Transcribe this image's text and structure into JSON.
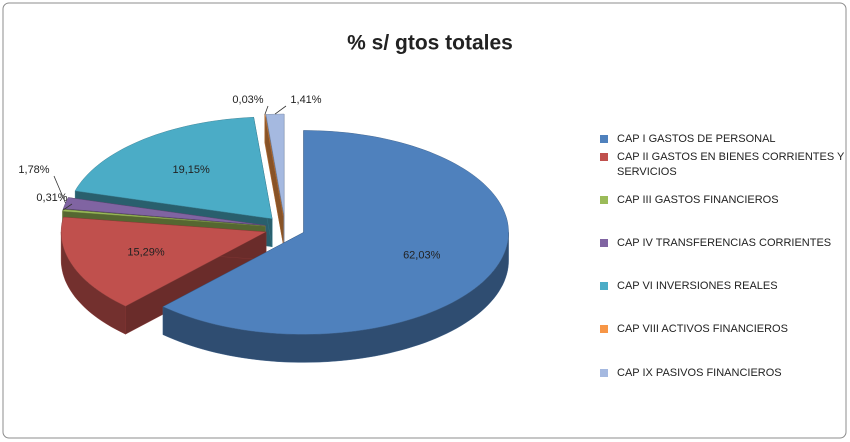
{
  "chart_data": {
    "type": "pie3d",
    "title": "% s/ gtos totales",
    "categories": [
      "CAP I GASTOS DE PERSONAL",
      "CAP II GASTOS EN BIENES CORRIENTES Y SERVICIOS",
      "CAP III GASTOS FINANCIEROS",
      "CAP IV TRANSFERENCIAS CORRIENTES",
      "CAP VI INVERSIONES REALES",
      "CAP VIII ACTIVOS FINANCIEROS",
      "CAP IX PASIVOS FINANCIEROS"
    ],
    "values": [
      62.03,
      15.29,
      0.31,
      1.78,
      19.15,
      0.03,
      1.41
    ],
    "value_labels": [
      "62,03%",
      "15,29%",
      "0,31%",
      "1,78%",
      "19,15%",
      "0,03%",
      "1,41%"
    ],
    "colors": [
      "#4f81bd",
      "#c0504d",
      "#9bbb59",
      "#8064a2",
      "#4bacc6",
      "#f79646",
      "#a5b9e0"
    ],
    "legend": "right"
  }
}
